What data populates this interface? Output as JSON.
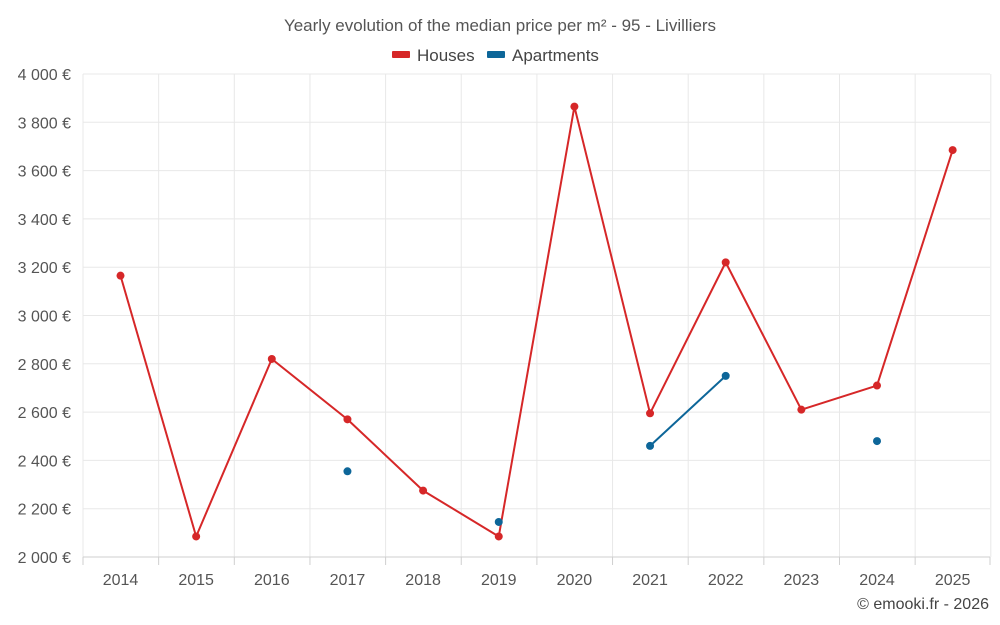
{
  "chart_data": {
    "type": "line",
    "title": "Yearly evolution of the median price per m² - 95 - Livilliers",
    "categories": [
      "2014",
      "2015",
      "2016",
      "2017",
      "2018",
      "2019",
      "2020",
      "2021",
      "2022",
      "2023",
      "2024",
      "2025"
    ],
    "ylim": [
      2000,
      4000
    ],
    "yticks": [
      2000,
      2200,
      2400,
      2600,
      2800,
      3000,
      3200,
      3400,
      3600,
      3800,
      4000
    ],
    "ytick_labels": [
      "2 000 €",
      "2 200 €",
      "2 400 €",
      "2 600 €",
      "2 800 €",
      "3 000 €",
      "3 200 €",
      "3 400 €",
      "3 600 €",
      "3 800 €",
      "4 000 €"
    ],
    "grid": true,
    "legend_position": "top-center",
    "series": [
      {
        "name": "Houses",
        "color": "#d62728",
        "values": [
          3165,
          2085,
          2820,
          2570,
          2275,
          2085,
          3865,
          2595,
          3220,
          2610,
          2710,
          3685
        ]
      },
      {
        "name": "Apartments",
        "color": "#0d6699",
        "values": [
          null,
          null,
          null,
          2355,
          null,
          2145,
          null,
          2460,
          2750,
          null,
          2480,
          null
        ]
      }
    ]
  },
  "credit": "© emooki.fr - 2026"
}
